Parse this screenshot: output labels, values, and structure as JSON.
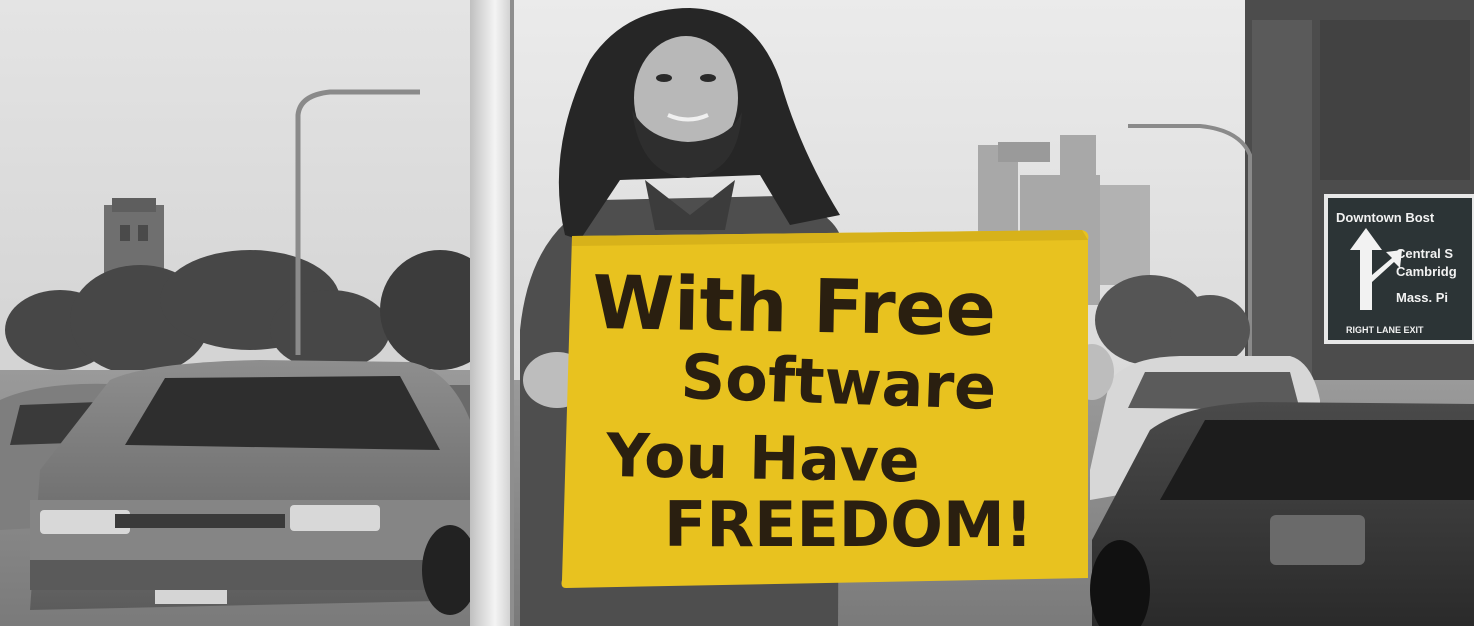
{
  "sign": {
    "line1": "With Free",
    "line2": "Software",
    "line3": "You Have",
    "line4": "FREEDOM!"
  },
  "road_sign": {
    "line1": "Downtown Bost",
    "line2": "Central S",
    "line3": "Cambridg",
    "line4": "Mass. Pi",
    "line5": "RIGHT LANE EXIT"
  },
  "colors": {
    "sign_yellow": "#e8c21f",
    "marker_ink": "#2a1f10",
    "road_sign_green": "#2c3436"
  }
}
